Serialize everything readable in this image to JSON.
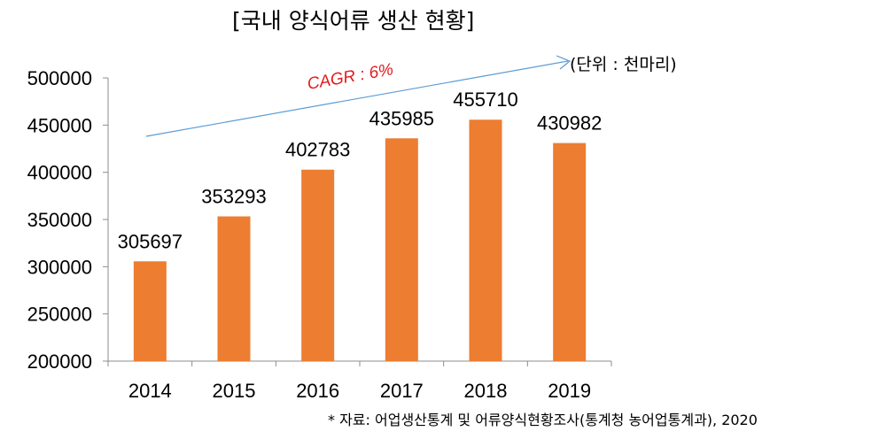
{
  "title": "[국내 양식어류 생산 현황]",
  "unit_note": "(단위 :  천마리)",
  "source_note": "* 자료: 어업생산통계 및 어류양식현황조사(통계청 농어업통계과), 2020",
  "annotation": {
    "text": "CAGR : 6%",
    "color": "#e31a1c",
    "arrow_color": "#5b9bd5"
  },
  "chart_data": {
    "type": "bar",
    "title": "[국내 양식어류 생산 현황]",
    "categories": [
      "2014",
      "2015",
      "2016",
      "2017",
      "2018",
      "2019"
    ],
    "values": [
      305697,
      353293,
      402783,
      435985,
      455710,
      430982
    ],
    "data_labels": [
      "305697",
      "353293",
      "402783",
      "435985",
      "455710",
      "430982"
    ],
    "ylim": [
      200000,
      500000
    ],
    "yticks": [
      "200000",
      "250000",
      "300000",
      "350000",
      "400000",
      "450000",
      "500000"
    ],
    "ytick_values": [
      200000,
      250000,
      300000,
      350000,
      400000,
      450000,
      500000
    ],
    "bar_color": "#ed7d31",
    "grid": false,
    "legend": false
  }
}
